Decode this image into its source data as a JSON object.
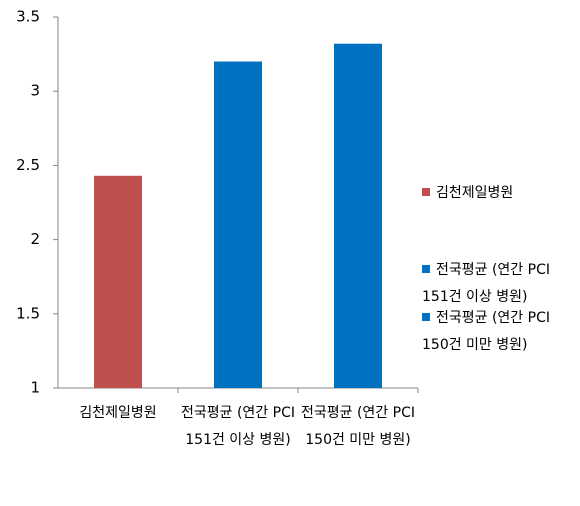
{
  "chart_data": {
    "type": "bar",
    "categories": [
      "김천제일병원",
      "전국평균 (연간 PCI 151건 이상 병원)",
      "전국평균 (연간 PCI 150건 미만 병원)"
    ],
    "values": [
      2.43,
      3.2,
      3.32
    ],
    "colors": [
      "#c0504d",
      "#0070c0",
      "#0070c0"
    ],
    "ylim": [
      1,
      3.5
    ],
    "yticks": [
      1,
      1.5,
      2,
      2.5,
      3,
      3.5
    ],
    "grid": false,
    "legend": "right"
  }
}
